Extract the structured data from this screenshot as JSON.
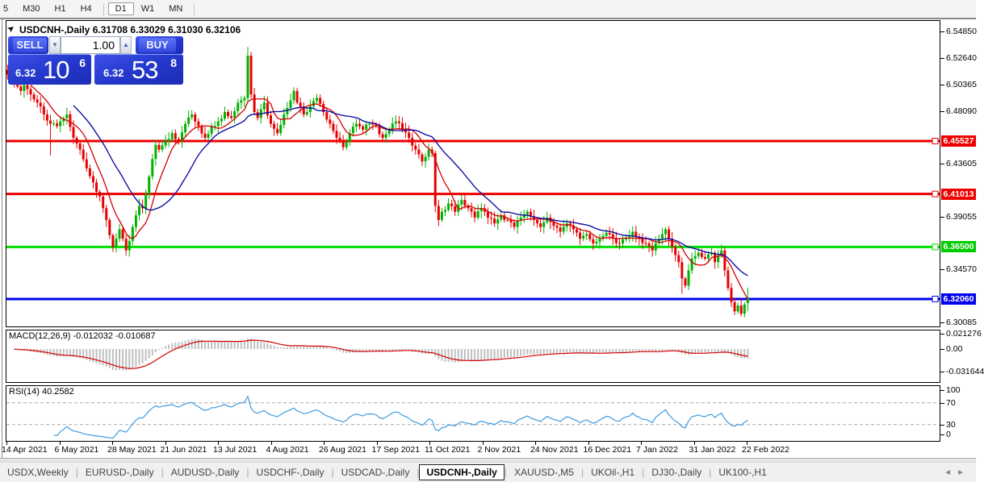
{
  "toolbar": {
    "timeframes": [
      "5",
      "M30",
      "H1",
      "H4",
      "D1",
      "W1",
      "MN"
    ],
    "active": "D1"
  },
  "chart": {
    "title": "USDCNH-,Daily",
    "ohlc_readout": "6.31708 6.33029 6.31030 6.32106",
    "trade_panel": {
      "sell_label": "SELL",
      "buy_label": "BUY",
      "volume": "1.00",
      "sell_price_prefix": "6.32",
      "sell_price_big": "10",
      "sell_price_sup": "6",
      "buy_price_prefix": "6.32",
      "buy_price_big": "53",
      "buy_price_sup": "8"
    }
  },
  "price_axis": {
    "ticks": [
      "6.54850",
      "6.52640",
      "6.50365",
      "6.48090",
      "6.43605",
      "6.39055",
      "6.34570",
      "6.30085"
    ],
    "line_labels": [
      {
        "text": "6.45527",
        "color": "#ee0000"
      },
      {
        "text": "6.41013",
        "color": "#ee0000"
      },
      {
        "text": "6.36500",
        "color": "#00cc00"
      },
      {
        "text": "6.32060",
        "color": "#0000ee"
      }
    ]
  },
  "macd_panel": {
    "label": "MACD(12,26,9)",
    "values": "-0.012032 -0.010687",
    "axis": [
      "0.021276",
      "0.00",
      "-0.031644"
    ]
  },
  "rsi_panel": {
    "label": "RSI(14)",
    "value": "40.2582",
    "axis": [
      "100",
      "70",
      "30",
      "0"
    ]
  },
  "date_axis": [
    "14 Apr 2021",
    "6 May 2021",
    "28 May 2021",
    "21 Jun 2021",
    "13 Jul 2021",
    "4 Aug 2021",
    "26 Aug 2021",
    "17 Sep 2021",
    "11 Oct 2021",
    "2 Nov 2021",
    "24 Nov 2021",
    "16 Dec 2021",
    "7 Jan 2022",
    "31 Jan 2022",
    "22 Feb 2022"
  ],
  "tab_bar": {
    "tabs": [
      "USDX,Weekly",
      "EURUSD-,Daily",
      "AUDUSD-,Daily",
      "USDCHF-,Daily",
      "USDCAD-,Daily",
      "USDCNH-,Daily",
      "XAUUSD-,M5",
      "UKOil-,H1",
      "DJ30-,Daily",
      "UK100-,H1"
    ],
    "active": "USDCNH-,Daily",
    "scroll_left": "◄",
    "scroll_right": "►"
  },
  "chart_data": {
    "type": "candlestick",
    "symbol": "USDCNH",
    "timeframe": "Daily",
    "title": "USDCNH-,Daily",
    "ohlc_last": {
      "open": 6.31708,
      "high": 6.33029,
      "low": 6.3103,
      "close": 6.32106
    },
    "price_range_visible": [
      6.30085,
      6.5485
    ],
    "num_candles": 226,
    "up_color": "#00b200",
    "down_color": "#e80000",
    "close_anchors": [
      [
        0,
        6.512
      ],
      [
        2,
        6.505
      ],
      [
        4,
        6.498
      ],
      [
        5,
        6.503
      ],
      [
        7,
        6.495
      ],
      [
        9,
        6.488
      ],
      [
        11,
        6.478
      ],
      [
        13,
        6.47
      ],
      [
        15,
        6.468
      ],
      [
        16,
        6.472
      ],
      [
        18,
        6.478
      ],
      [
        20,
        6.458
      ],
      [
        22,
        6.448
      ],
      [
        24,
        6.432
      ],
      [
        26,
        6.42
      ],
      [
        28,
        6.408
      ],
      [
        29,
        6.398
      ],
      [
        30,
        6.388
      ],
      [
        31,
        6.375
      ],
      [
        32,
        6.365
      ],
      [
        33,
        6.372
      ],
      [
        34,
        6.38
      ],
      [
        35,
        6.372
      ],
      [
        36,
        6.362
      ],
      [
        37,
        6.37
      ],
      [
        38,
        6.382
      ],
      [
        39,
        6.392
      ],
      [
        40,
        6.4
      ],
      [
        41,
        6.398
      ],
      [
        42,
        6.41
      ],
      [
        43,
        6.425
      ],
      [
        44,
        6.44
      ],
      [
        45,
        6.452
      ],
      [
        46,
        6.448
      ],
      [
        48,
        6.455
      ],
      [
        50,
        6.462
      ],
      [
        52,
        6.455
      ],
      [
        54,
        6.47
      ],
      [
        56,
        6.478
      ],
      [
        58,
        6.468
      ],
      [
        60,
        6.458
      ],
      [
        62,
        6.468
      ],
      [
        64,
        6.472
      ],
      [
        66,
        6.48
      ],
      [
        68,
        6.475
      ],
      [
        70,
        6.488
      ],
      [
        72,
        6.492
      ],
      [
        73,
        6.528
      ],
      [
        74,
        6.495
      ],
      [
        75,
        6.48
      ],
      [
        76,
        6.475
      ],
      [
        78,
        6.488
      ],
      [
        80,
        6.47
      ],
      [
        82,
        6.462
      ],
      [
        84,
        6.478
      ],
      [
        86,
        6.49
      ],
      [
        87,
        6.498
      ],
      [
        88,
        6.488
      ],
      [
        90,
        6.478
      ],
      [
        92,
        6.485
      ],
      [
        94,
        6.492
      ],
      [
        96,
        6.48
      ],
      [
        98,
        6.47
      ],
      [
        100,
        6.458
      ],
      [
        102,
        6.45
      ],
      [
        104,
        6.462
      ],
      [
        106,
        6.47
      ],
      [
        108,
        6.465
      ],
      [
        110,
        6.47
      ],
      [
        112,
        6.468
      ],
      [
        114,
        6.458
      ],
      [
        116,
        6.465
      ],
      [
        118,
        6.472
      ],
      [
        120,
        6.465
      ],
      [
        122,
        6.458
      ],
      [
        124,
        6.448
      ],
      [
        126,
        6.438
      ],
      [
        128,
        6.448
      ],
      [
        129,
        6.445
      ],
      [
        130,
        6.4
      ],
      [
        131,
        6.388
      ],
      [
        132,
        6.395
      ],
      [
        134,
        6.402
      ],
      [
        136,
        6.395
      ],
      [
        138,
        6.405
      ],
      [
        140,
        6.398
      ],
      [
        142,
        6.39
      ],
      [
        144,
        6.398
      ],
      [
        146,
        6.39
      ],
      [
        148,
        6.385
      ],
      [
        150,
        6.392
      ],
      [
        152,
        6.388
      ],
      [
        154,
        6.382
      ],
      [
        156,
        6.39
      ],
      [
        158,
        6.395
      ],
      [
        160,
        6.388
      ],
      [
        162,
        6.382
      ],
      [
        164,
        6.39
      ],
      [
        166,
        6.383
      ],
      [
        168,
        6.378
      ],
      [
        170,
        6.385
      ],
      [
        172,
        6.38
      ],
      [
        174,
        6.372
      ],
      [
        176,
        6.376
      ],
      [
        178,
        6.368
      ],
      [
        180,
        6.372
      ],
      [
        182,
        6.377
      ],
      [
        184,
        6.372
      ],
      [
        186,
        6.368
      ],
      [
        188,
        6.373
      ],
      [
        190,
        6.378
      ],
      [
        192,
        6.372
      ],
      [
        194,
        6.368
      ],
      [
        196,
        6.362
      ],
      [
        198,
        6.372
      ],
      [
        200,
        6.38
      ],
      [
        201,
        6.372
      ],
      [
        202,
        6.365
      ],
      [
        203,
        6.358
      ],
      [
        204,
        6.352
      ],
      [
        205,
        6.338
      ],
      [
        206,
        6.332
      ],
      [
        207,
        6.345
      ],
      [
        208,
        6.355
      ],
      [
        210,
        6.36
      ],
      [
        212,
        6.355
      ],
      [
        214,
        6.36
      ],
      [
        215,
        6.352
      ],
      [
        216,
        6.358
      ],
      [
        217,
        6.362
      ],
      [
        218,
        6.345
      ],
      [
        219,
        6.33
      ],
      [
        220,
        6.318
      ],
      [
        221,
        6.31
      ],
      [
        222,
        6.315
      ],
      [
        223,
        6.308
      ],
      [
        224,
        6.316
      ],
      [
        225,
        6.32106
      ]
    ],
    "candle_overrides": {
      "13": {
        "low": 6.443
      },
      "73": {
        "high": 6.5355
      },
      "205": {
        "low": 6.325
      },
      "225": {
        "open": 6.31708,
        "high": 6.33029,
        "low": 6.3103,
        "close": 6.32106
      }
    },
    "moving_averages": [
      {
        "period": 8,
        "color": "#d40000"
      },
      {
        "period": 21,
        "color": "#0000a0"
      }
    ],
    "hlines": [
      {
        "price": 6.45527,
        "color": "#ee0000",
        "width": 3
      },
      {
        "price": 6.41013,
        "color": "#ee0000",
        "width": 3
      },
      {
        "price": 6.365,
        "color": "#00e000",
        "width": 3
      },
      {
        "price": 6.3206,
        "color": "#0000ee",
        "width": 3
      }
    ],
    "indicators": [
      {
        "name": "MACD",
        "params": [
          12,
          26,
          9
        ],
        "current": [
          -0.012032,
          -0.010687
        ],
        "axis_range": [
          -0.031644,
          0.021276
        ],
        "histogram_color": "#bfbfbf",
        "signal_color": "#d40000"
      },
      {
        "name": "RSI",
        "params": [
          14
        ],
        "current": 40.2582,
        "levels": [
          70,
          30
        ],
        "axis_range": [
          0,
          100
        ],
        "line_color": "#3d9be0"
      }
    ]
  }
}
